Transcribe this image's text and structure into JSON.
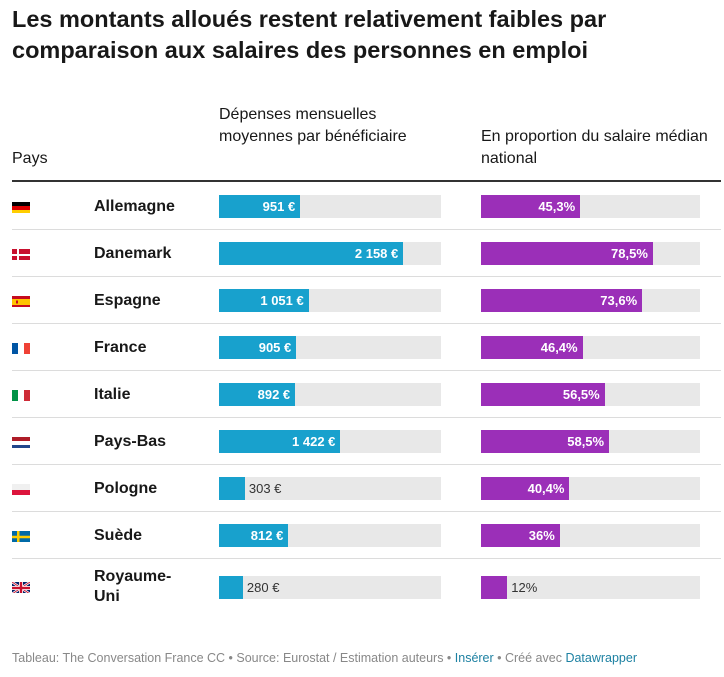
{
  "title": "Les montants alloués restent relativement faibles par comparaison aux salaires des personnes en emploi",
  "headers": {
    "country": "Pays",
    "spend": "Dépenses mensuelles moyennes par bénéficiaire",
    "ratio": "En proportion du salaire médian national"
  },
  "colors": {
    "spend_bar": "#18a1cd",
    "ratio_bar": "#9b2fb8",
    "track": "#e8e8e8"
  },
  "chart_data": {
    "type": "table",
    "columns": [
      "Pays",
      "Dépenses mensuelles moyennes par bénéficiaire",
      "En proportion du salaire médian national"
    ],
    "spend_max": 2600,
    "ratio_max": 100,
    "rows": [
      {
        "country": "Allemagne",
        "flag": "de",
        "spend": 951,
        "spend_label": "951 €",
        "ratio": 45.3,
        "ratio_label": "45,3%"
      },
      {
        "country": "Danemark",
        "flag": "dk",
        "spend": 2158,
        "spend_label": "2 158 €",
        "ratio": 78.5,
        "ratio_label": "78,5%"
      },
      {
        "country": "Espagne",
        "flag": "es",
        "spend": 1051,
        "spend_label": "1 051 €",
        "ratio": 73.6,
        "ratio_label": "73,6%"
      },
      {
        "country": "France",
        "flag": "fr",
        "spend": 905,
        "spend_label": "905 €",
        "ratio": 46.4,
        "ratio_label": "46,4%"
      },
      {
        "country": "Italie",
        "flag": "it",
        "spend": 892,
        "spend_label": "892 €",
        "ratio": 56.5,
        "ratio_label": "56,5%"
      },
      {
        "country": "Pays-Bas",
        "flag": "nl",
        "spend": 1422,
        "spend_label": "1 422 €",
        "ratio": 58.5,
        "ratio_label": "58,5%"
      },
      {
        "country": "Pologne",
        "flag": "pl",
        "spend": 303,
        "spend_label": "303 €",
        "ratio": 40.4,
        "ratio_label": "40,4%"
      },
      {
        "country": "Suède",
        "flag": "se",
        "spend": 812,
        "spend_label": "812 €",
        "ratio": 36,
        "ratio_label": "36%"
      },
      {
        "country": "Royaume-Uni",
        "flag": "gb",
        "spend": 280,
        "spend_label": "280 €",
        "ratio": 12,
        "ratio_label": "12%"
      }
    ]
  },
  "footer": {
    "source": "Tableau: The Conversation France CC • Source: Eurostat / Estimation auteurs • ",
    "insert_link": "Insérer",
    "created": " • Créé avec ",
    "dw_link": "Datawrapper"
  }
}
